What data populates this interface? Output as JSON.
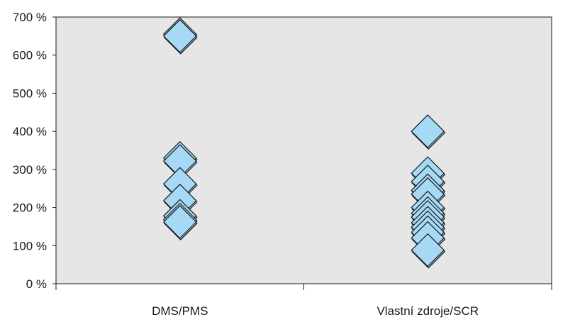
{
  "chart_data": {
    "type": "scatter",
    "title": "",
    "xlabel": "",
    "ylabel": "",
    "categories": [
      "DMS/PMS",
      "Vlastní zdroje/SCR"
    ],
    "ylim": [
      0,
      700
    ],
    "yticks": [
      0,
      100,
      200,
      300,
      400,
      500,
      600,
      700
    ],
    "ytick_labels": [
      "0 %",
      "100 %",
      "200 %",
      "300 %",
      "400 %",
      "500 %",
      "600 %",
      "700 %"
    ],
    "series": [
      {
        "category": "DMS/PMS",
        "values": [
          655,
          650,
          330,
          322,
          262,
          218,
          178,
          168,
          162
        ]
      },
      {
        "category": "Vlastní zdroje/SCR",
        "values": [
          400,
          290,
          268,
          245,
          235,
          200,
          185,
          175,
          160,
          148,
          135,
          120,
          88
        ]
      }
    ],
    "grid": false,
    "legend": "none",
    "colors": {
      "plot_background": "#e6e6e6",
      "marker_fill": "#a6d9f5",
      "marker_stroke": "#1a1a1a",
      "axis": "#1a1a1a"
    }
  }
}
